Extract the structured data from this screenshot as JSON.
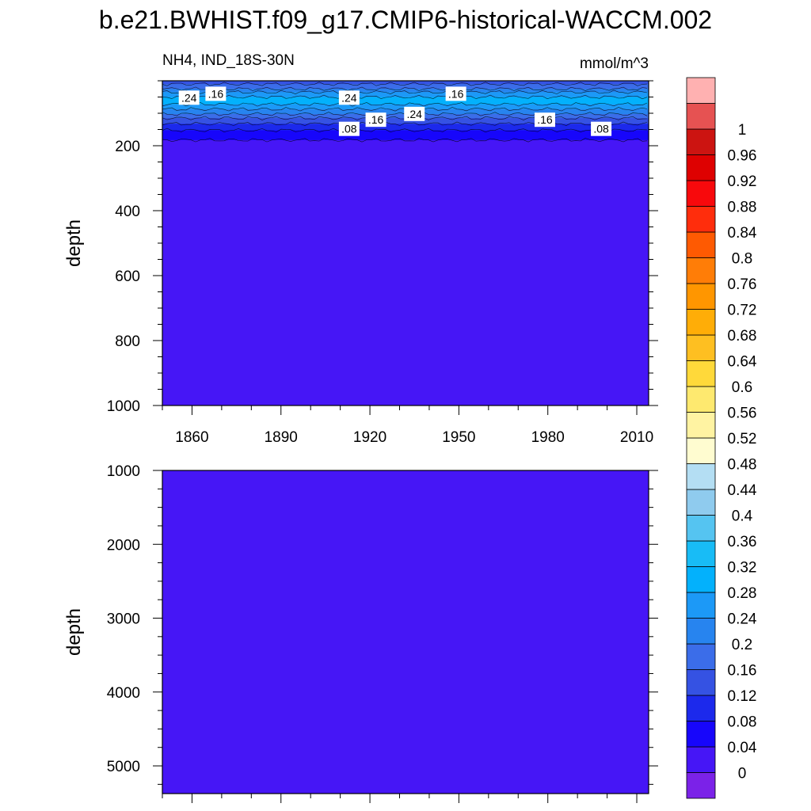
{
  "title": "b.e21.BWHIST.f09_g17.CMIP6-historical-WACCM.002",
  "subtitle_left": "NH4, IND_18S-30N",
  "subtitle_right": "mmol/m^3",
  "chart_data": [
    {
      "type": "heatmap",
      "panel": "upper",
      "variable": "NH4",
      "region": "IND_18S-30N",
      "units": "mmol/m^3",
      "xlabel": "",
      "ylabel": "depth",
      "xlim": [
        1850,
        2014
      ],
      "ylim": [
        1000,
        0
      ],
      "xticks": [
        1860,
        1890,
        1920,
        1950,
        1980,
        2010
      ],
      "xtick_labels": [
        "1860",
        "1890",
        "1920",
        "1950",
        "1980",
        "2010"
      ],
      "yticks": [
        200,
        400,
        600,
        800,
        1000
      ],
      "ytick_labels": [
        "200",
        "400",
        "600",
        "800",
        "1000"
      ],
      "depth_profile": [
        {
          "depth": 0,
          "value": 0.14
        },
        {
          "depth": 20,
          "value": 0.18
        },
        {
          "depth": 40,
          "value": 0.26
        },
        {
          "depth": 60,
          "value": 0.3
        },
        {
          "depth": 80,
          "value": 0.26
        },
        {
          "depth": 100,
          "value": 0.2
        },
        {
          "depth": 120,
          "value": 0.14
        },
        {
          "depth": 140,
          "value": 0.1
        },
        {
          "depth": 160,
          "value": 0.06
        },
        {
          "depth": 180,
          "value": 0.04
        },
        {
          "depth": 200,
          "value": 0.02
        },
        {
          "depth": 1000,
          "value": 0.01
        }
      ],
      "contour_labels": [
        {
          "text": ".24",
          "year": 1859,
          "depth": 52
        },
        {
          "text": ".16",
          "year": 1868,
          "depth": 40
        },
        {
          "text": ".24",
          "year": 1913,
          "depth": 52
        },
        {
          "text": ".16",
          "year": 1949,
          "depth": 40
        },
        {
          "text": ".16",
          "year": 1922,
          "depth": 120
        },
        {
          "text": ".24",
          "year": 1935,
          "depth": 102
        },
        {
          "text": ".08",
          "year": 1913,
          "depth": 148
        },
        {
          "text": ".16",
          "year": 1979,
          "depth": 120
        },
        {
          "text": ".08",
          "year": 1998,
          "depth": 148
        }
      ]
    },
    {
      "type": "heatmap",
      "panel": "lower",
      "variable": "NH4",
      "xlabel": "",
      "ylabel": "depth",
      "xlim": [
        1850,
        2014
      ],
      "ylim": [
        5375,
        1000
      ],
      "xticks": [
        1860,
        1890,
        1920,
        1950,
        1980,
        2010
      ],
      "yticks": [
        1000,
        2000,
        3000,
        4000,
        5000
      ],
      "ytick_labels": [
        "1000",
        "2000",
        "3000",
        "4000",
        "5000"
      ],
      "depth_profile": [
        {
          "depth": 1000,
          "value": 0.01
        },
        {
          "depth": 5375,
          "value": 0.01
        }
      ]
    }
  ],
  "colorbar": {
    "levels": [
      0,
      0.04,
      0.08,
      0.12,
      0.16,
      0.2,
      0.24,
      0.28,
      0.32,
      0.36,
      0.4,
      0.44,
      0.48,
      0.52,
      0.56,
      0.6,
      0.64,
      0.68,
      0.72,
      0.76,
      0.8,
      0.84,
      0.88,
      0.92,
      0.96,
      1
    ],
    "labels": [
      "0",
      "0.04",
      "0.08",
      "0.12",
      "0.16",
      "0.2",
      "0.24",
      "0.28",
      "0.32",
      "0.36",
      "0.4",
      "0.44",
      "0.48",
      "0.52",
      "0.56",
      "0.6",
      "0.64",
      "0.68",
      "0.72",
      "0.76",
      "0.8",
      "0.84",
      "0.88",
      "0.92",
      "0.96",
      "1"
    ],
    "colors": [
      "#7b22e8",
      "#4616f6",
      "#1706fb",
      "#1c29ec",
      "#3552e3",
      "#3b6de9",
      "#2784ef",
      "#1c99f7",
      "#03b1fc",
      "#18bcf6",
      "#55c4f1",
      "#8fcbee",
      "#b4def3",
      "#fffcd0",
      "#fff3a2",
      "#fee96f",
      "#ffd93a",
      "#febf21",
      "#ffad07",
      "#ff9600",
      "#ff7d07",
      "#fe5a02",
      "#ff2d0c",
      "#f8090c",
      "#de0101",
      "#cc1411",
      "#e65252",
      "#ffb1b1"
    ]
  }
}
